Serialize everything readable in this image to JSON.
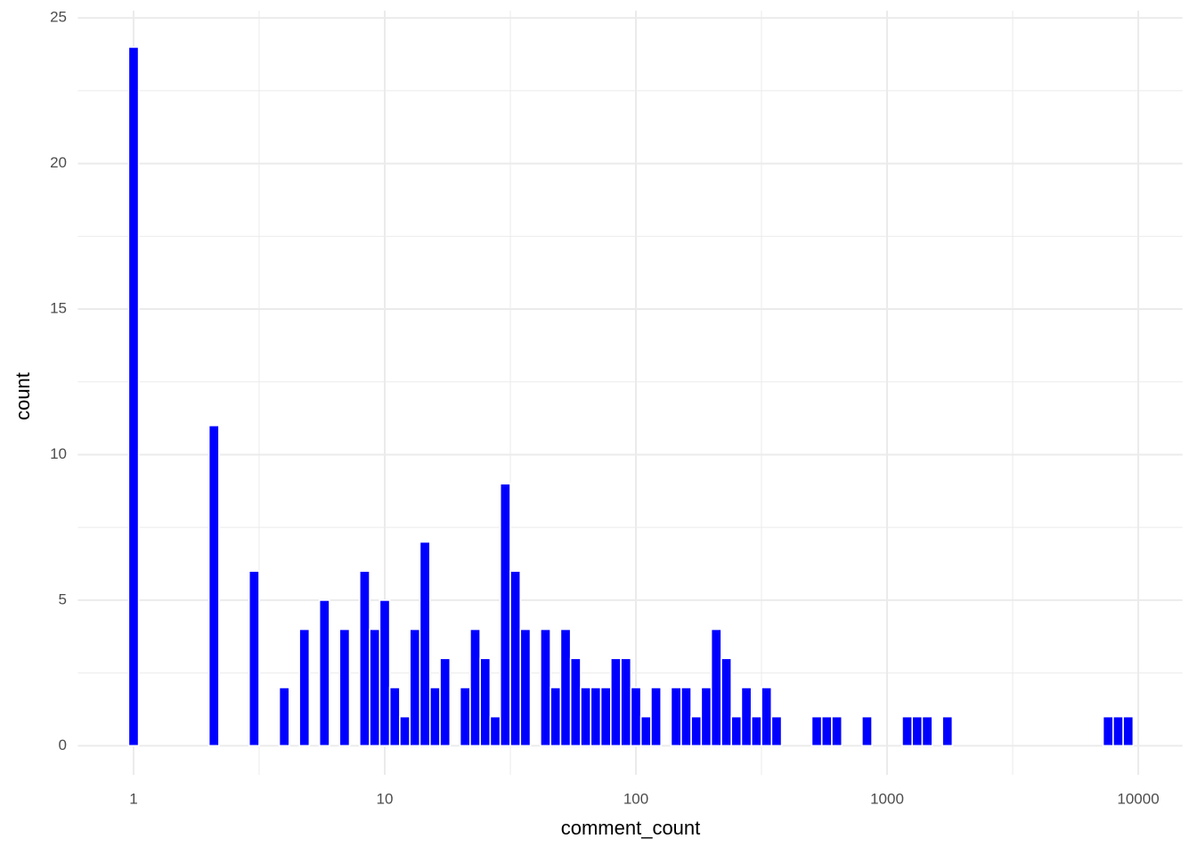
{
  "chart_data": {
    "type": "histogram",
    "x_label": "comment_count",
    "y_label": "count",
    "x_log": true,
    "grid": true,
    "color": "#0000ff",
    "bins": [
      0.955,
      1.047,
      1.148,
      1.259,
      1.38,
      1.514,
      1.66,
      1.82,
      1.995,
      2.188,
      2.399,
      2.63,
      2.884,
      3.162,
      3.467,
      3.802,
      4.169,
      4.571,
      5.012,
      5.495,
      6.026,
      6.607,
      7.244,
      7.943,
      8.71,
      9.55,
      10.47,
      11.48,
      12.59,
      13.8,
      15.14,
      16.6,
      18.2,
      19.95,
      21.88,
      23.99,
      26.3,
      28.84,
      31.62,
      34.67,
      38.02,
      41.69,
      45.71,
      50.12,
      54.95,
      60.26,
      66.07,
      72.44,
      79.43,
      87.1,
      95.5,
      104.7,
      114.8,
      125.9,
      138.0,
      151.4,
      166.0,
      182.0,
      199.5,
      218.8,
      239.9,
      263.0,
      288.4,
      316.2,
      346.7,
      380.2,
      416.9,
      457.1,
      501.2,
      549.5,
      602.6,
      660.7,
      724.4,
      794.3,
      871.0,
      955.0,
      1047,
      1148,
      1259,
      1380,
      1514,
      1660,
      1820,
      1995,
      2188,
      2399,
      2630,
      2884,
      3162,
      3467,
      3802,
      4169,
      4571,
      5012,
      5495,
      6026,
      6607,
      7244,
      7943,
      8710,
      9550
    ],
    "values": [
      24,
      0,
      0,
      0,
      0,
      0,
      0,
      0,
      11,
      0,
      0,
      0,
      6,
      0,
      0,
      2,
      0,
      4,
      0,
      5,
      0,
      4,
      0,
      6,
      4,
      5,
      2,
      1,
      4,
      7,
      2,
      3,
      0,
      2,
      4,
      3,
      1,
      9,
      6,
      4,
      0,
      4,
      2,
      4,
      3,
      2,
      2,
      2,
      3,
      3,
      2,
      1,
      2,
      0,
      2,
      2,
      1,
      2,
      4,
      3,
      1,
      2,
      1,
      2,
      1,
      0,
      0,
      0,
      1,
      1,
      1,
      0,
      0,
      1,
      0,
      0,
      0,
      1,
      1,
      1,
      0,
      1,
      0,
      0,
      0,
      0,
      0,
      0,
      0,
      0,
      0,
      0,
      0,
      0,
      0,
      0,
      0,
      1,
      1,
      1
    ],
    "xlim": [
      0.6,
      15000
    ],
    "xticks": [
      1,
      10,
      100,
      1000,
      10000
    ],
    "ylim": [
      -1,
      25.25
    ],
    "yticks": [
      0,
      5,
      10,
      15,
      20,
      25
    ]
  }
}
